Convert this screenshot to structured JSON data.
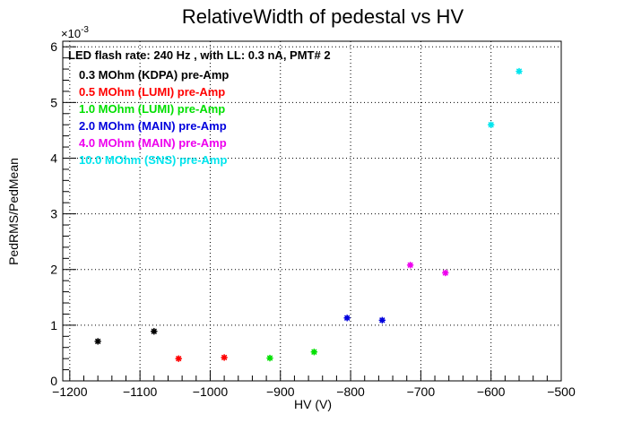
{
  "chart_data": {
    "type": "scatter",
    "title": "RelativeWidth of pedestal vs HV",
    "xlabel": "HV (V)",
    "ylabel": "PedRMS/PedMean",
    "y_exponent_label": "×10",
    "y_exponent_power": "-3",
    "xlim": [
      -1210,
      -500
    ],
    "ylim": [
      0,
      6.1
    ],
    "x_ticks": [
      -1200,
      -1100,
      -1000,
      -900,
      -800,
      -700,
      -600,
      -500
    ],
    "x_tick_labels": [
      "−1200",
      "−1100",
      "−1000",
      "−900",
      "−800",
      "−700",
      "−600",
      "−500"
    ],
    "y_ticks": [
      0,
      1,
      2,
      3,
      4,
      5,
      6
    ],
    "y_tick_labels": [
      "0",
      "1",
      "2",
      "3",
      "4",
      "5",
      "6"
    ],
    "grid": true,
    "legend_placement": "top-left",
    "header": "LED flash rate: 240 Hz , with LL: 0.3 nA, PMT# 2",
    "series": [
      {
        "name": "0.3 MOhm (KDPA) pre-Amp",
        "color": "#000000",
        "points": [
          [
            -1160,
            0.71
          ],
          [
            -1080,
            0.89
          ]
        ]
      },
      {
        "name": "0.5 MOhm (LUMI) pre-Amp",
        "color": "#ff0000",
        "points": [
          [
            -1045,
            0.4
          ],
          [
            -980,
            0.42
          ]
        ]
      },
      {
        "name": "1.0 MOhm (LUMI) pre-Amp",
        "color": "#00e000",
        "points": [
          [
            -915,
            0.41
          ],
          [
            -852,
            0.52
          ]
        ]
      },
      {
        "name": "2.0 MOhm (MAIN) pre-Amp",
        "color": "#0000dd",
        "points": [
          [
            -805,
            1.13
          ],
          [
            -755,
            1.09
          ]
        ]
      },
      {
        "name": "4.0 MOhm (MAIN) pre-Amp",
        "color": "#ee00ee",
        "points": [
          [
            -715,
            2.08
          ],
          [
            -665,
            1.94
          ]
        ]
      },
      {
        "name": "10.0 MOhm (SNS) pre-Amp",
        "color": "#00e5ee",
        "points": [
          [
            -600,
            4.6
          ],
          [
            -560,
            5.56
          ]
        ]
      }
    ]
  }
}
